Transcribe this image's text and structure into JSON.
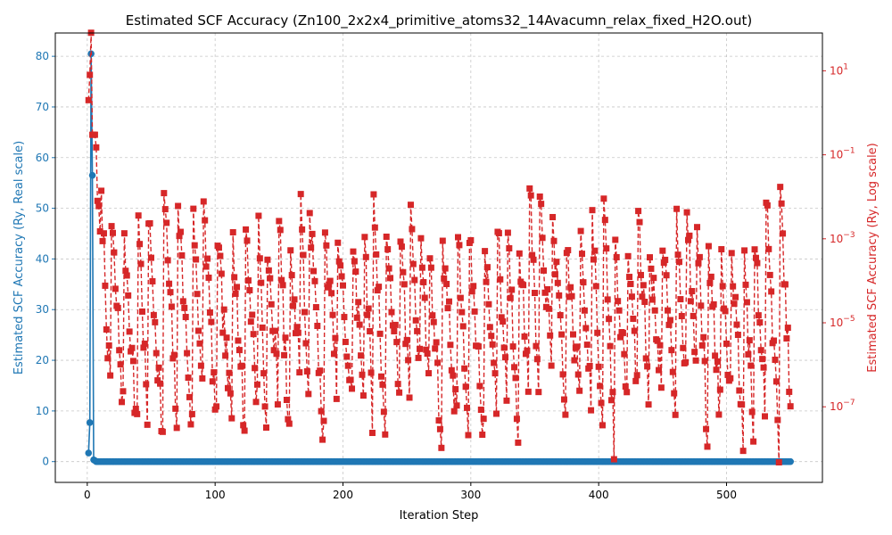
{
  "chart_data": {
    "type": "line",
    "title": "Estimated SCF Accuracy (Zn100_2x2x4_primitive_atoms32_14Avacumn_relax_fixed_H2O.out)",
    "xlabel": "Iteration Step",
    "ylabel_left": "Estimated SCF Accuracy (Ry, Real scale)",
    "ylabel_right": "Estimated SCF Accuracy (Ry, Log scale)",
    "xlim": [
      -25,
      575
    ],
    "ylim_left": [
      -4.1,
      84.6
    ],
    "ylim_right_log10": [
      -8.8,
      1.9
    ],
    "grid": true,
    "x_ticks": [
      0,
      100,
      200,
      300,
      400,
      500
    ],
    "y_ticks_left": [
      0,
      10,
      20,
      30,
      40,
      50,
      60,
      70,
      80
    ],
    "y_ticks_right": [
      {
        "exp": 1,
        "label": "10",
        "sup": "1"
      },
      {
        "exp": -1,
        "label": "10",
        "sup": "−1"
      },
      {
        "exp": -3,
        "label": "10",
        "sup": "−3"
      },
      {
        "exp": -5,
        "label": "10",
        "sup": "−5"
      },
      {
        "exp": -7,
        "label": "10",
        "sup": "−7"
      }
    ],
    "series": [
      {
        "axis": "left",
        "scale": "linear",
        "color": "#1f77b4",
        "marker": "circle",
        "x_start": 1,
        "n_points": 550,
        "head_values": [
          1.7,
          7.7,
          80.5,
          56.5,
          0.35,
          0.2
        ],
        "tail_value": 0.0
      },
      {
        "axis": "right",
        "scale": "log",
        "color": "#d62728",
        "marker": "square",
        "linestyle": "dashed",
        "x_start": 1,
        "n_points": 550,
        "head_values": [
          2.0,
          8.0,
          80.5,
          0.3,
          0.3,
          0.3,
          0.15,
          0.008,
          0.006,
          0.0015
        ],
        "cycle_peak_range": [
          0.0003,
          0.02
        ],
        "cycle_min_range": [
          1e-08,
          1e-06
        ],
        "cycle_length_range": [
          7,
          12
        ],
        "rng_seed": 7
      }
    ]
  }
}
